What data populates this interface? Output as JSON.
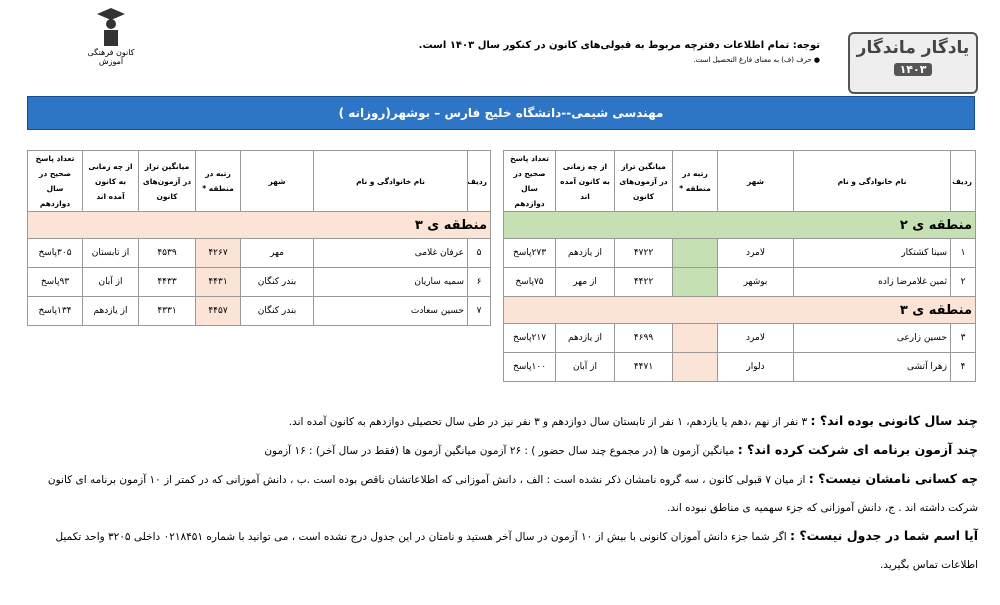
{
  "header": {
    "brand": "یادگار ماندگار",
    "year": "۱۴۰۳",
    "notice": "توجه: تمام اطلاعات دفترچه مربوط به قبولی‌های کانون در کنکور سال ۱۴۰۳ است.",
    "note": "● حرف (ف) به معنای فارغ التحصیل است.",
    "org": "کانون فرهنگی آموزش"
  },
  "title": "مهندسی شیمی--دانشگاه خلیج فارس – بوشهر(روزانه )",
  "columns": [
    "ردیف",
    "نام خانوادگی و نام",
    "شهر",
    "رتبه در منطقه *",
    "میانگین تراز در آزمون‌های کانون",
    "از چه زمانی به کانون آمده اند",
    "تعداد پاسخ صحیح در سال دوازدهم"
  ],
  "tables": [
    {
      "groups": [
        {
          "region": "منطقه ی ۲",
          "color": "#c5e0b3",
          "rows": [
            [
              "۱",
              "سینا کشتکار",
              "لامرد",
              null,
              "۴۷۲۲",
              "از یازدهم",
              "۲۷۳پاسخ"
            ],
            [
              "۲",
              "ثمین غلامرضا زاده",
              "بوشهر",
              null,
              "۴۴۲۲",
              "از مهر",
              "۷۵پاسخ"
            ]
          ]
        },
        {
          "region": "منطقه ی ۳",
          "color": "#fbe4d5",
          "rows": [
            [
              "۳",
              "حسین زارعی",
              "لامرد",
              null,
              "۴۶۹۹",
              "از یازدهم",
              "۲۱۷پاسخ"
            ],
            [
              "۴",
              "زهرا آتشی",
              "دلوار",
              null,
              "۴۴۷۱",
              "از آبان",
              "۱۰۰پاسخ"
            ]
          ]
        }
      ]
    },
    {
      "groups": [
        {
          "region": "منطقه ی ۳",
          "color": "#fbe4d5",
          "rows": [
            [
              "۵",
              "عرفان غلامی",
              "مهر",
              "۴۲۶۷",
              "۴۵۳۹",
              "از تابستان",
              "۳۰۵پاسخ"
            ],
            [
              "۶",
              "سمیه ساریان",
              "بندر کنگان",
              "۴۴۳۱",
              "۴۴۳۳",
              "از آبان",
              "۹۳پاسخ"
            ],
            [
              "۷",
              "حسین سعادت",
              "بندر کنگان",
              "۴۴۵۷",
              "۴۳۳۱",
              "از یازدهم",
              "۱۳۴پاسخ"
            ]
          ]
        }
      ]
    }
  ],
  "notes": [
    {
      "label": "چند سال کانونی بوده اند؟ :",
      "text": " ۳ نفر از نهم ،دهم یا یازدهم، ۱ نفر از تابستان سال دوازدهم و ۳ نفر نیز در طی سال تحصیلی دوازدهم به کانون آمده اند."
    },
    {
      "label": "چند آزمون برنامه ای شرکت کرده اند؟ :",
      "text": " میانگین آزمون ها (در مجموع چند سال حضور ) : ۲۶ آزمون     میانگین آزمون ها (فقط در سال آخر) : ۱۶ آزمون"
    },
    {
      "label": "چه کسانی نامشان نیست؟ :",
      "text": " از میان ۷ قبولی کانون ، سه گروه نامشان ذکر نشده است : الف ، دانش آموزانی که اطلاعاتشان ناقص بوده است .ب ، دانش آموزانی که در کمتر از ۱۰ آزمون برنامه ای کانون شرکت داشته اند . ج، دانش آموزانی که جزء سهمیه ی مناطق نبوده اند."
    },
    {
      "label": "آیا اسم شما در جدول نیست؟ :",
      "text": " اگر شما جزء دانش آموزان کانونی با بیش از ۱۰ آزمون در سال آخر هستید و نامتان در این جدول درج نشده است ، می توانید با شماره ۰۲۱۸۴۵۱ داخلی ۳۲۰۵ واحد تکمیل اطلاعات تماس بگیرید."
    }
  ]
}
